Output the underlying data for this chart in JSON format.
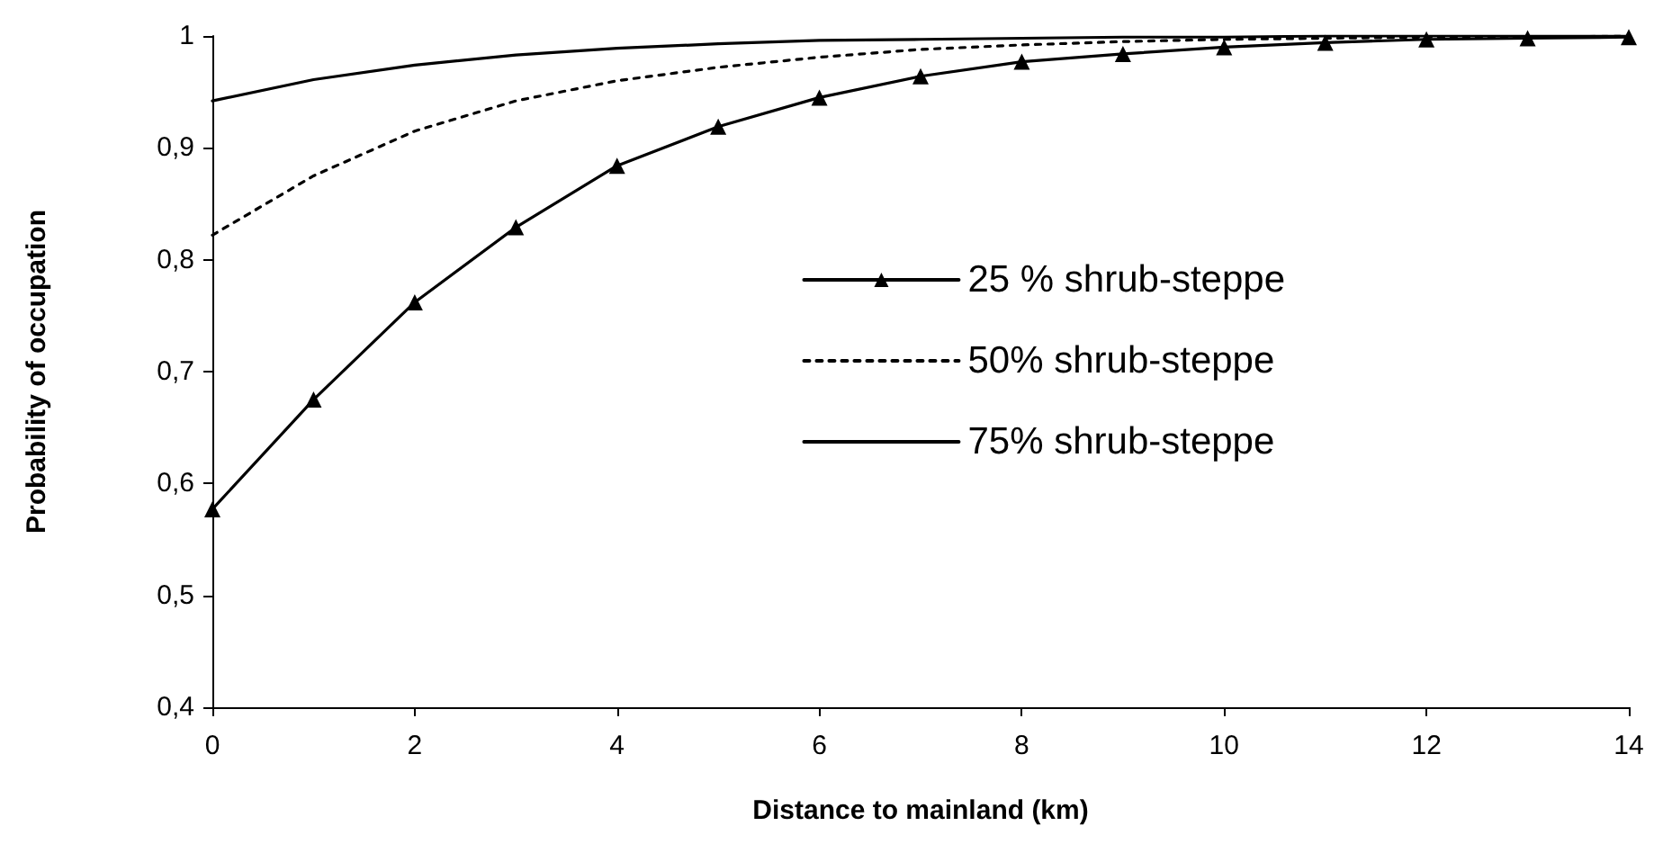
{
  "chart_data": {
    "type": "line",
    "xlabel": "Distance to mainland (km)",
    "ylabel": "Probability of occupation",
    "x": [
      0,
      1,
      2,
      3,
      4,
      5,
      6,
      7,
      8,
      9,
      10,
      11,
      12,
      13,
      14
    ],
    "xlim": [
      0,
      14
    ],
    "xticks": [
      0,
      2,
      4,
      6,
      8,
      10,
      12,
      14
    ],
    "ylim": [
      0.4,
      1
    ],
    "yticks": [
      {
        "value": 0.4,
        "label": "0,4"
      },
      {
        "value": 0.5,
        "label": "0,5"
      },
      {
        "value": 0.6,
        "label": "0,6"
      },
      {
        "value": 0.7,
        "label": "0,7"
      },
      {
        "value": 0.8,
        "label": "0,8"
      },
      {
        "value": 0.9,
        "label": "0,9"
      },
      {
        "value": 1,
        "label": "1"
      }
    ],
    "grid": false,
    "legend": "right",
    "series": [
      {
        "name": "25 % shrub-steppe",
        "color": "#000000",
        "marker": "triangle",
        "line_style": "solid",
        "values": [
          0.577,
          0.675,
          0.762,
          0.829,
          0.884,
          0.919,
          0.945,
          0.964,
          0.977,
          0.984,
          0.99,
          0.994,
          0.997,
          0.998,
          0.999
        ]
      },
      {
        "name": "50% shrub-steppe",
        "color": "#000000",
        "marker": "none",
        "line_style": "dotted",
        "values": [
          0.822,
          0.875,
          0.915,
          0.942,
          0.96,
          0.972,
          0.981,
          0.988,
          0.992,
          0.995,
          0.997,
          0.998,
          0.999,
          0.999,
          1
        ]
      },
      {
        "name": "75% shrub-steppe",
        "color": "#000000",
        "marker": "none",
        "line_style": "solid",
        "values": [
          0.942,
          0.961,
          0.974,
          0.983,
          0.989,
          0.993,
          0.996,
          0.997,
          0.998,
          0.999,
          0.999,
          1,
          1,
          1,
          1
        ]
      }
    ]
  }
}
